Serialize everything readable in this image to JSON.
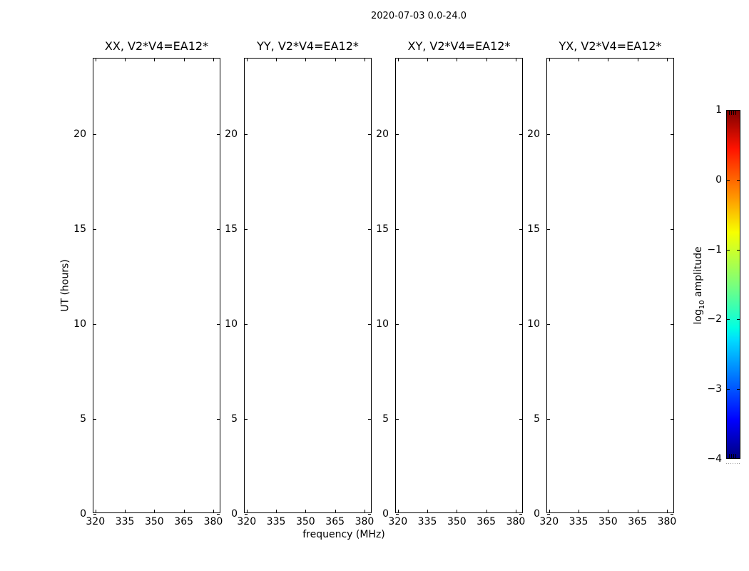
{
  "figure": {
    "title": "2020-07-03 0.0-24.0",
    "xlabel": "frequency (MHz)",
    "ylabel": "UT (hours)",
    "background_color": "#ffffff",
    "foreground_color": "#000000"
  },
  "subplots": [
    {
      "title": "XX, V2*V4=EA12*"
    },
    {
      "title": "YY, V2*V4=EA12*"
    },
    {
      "title": "XY, V2*V4=EA12*"
    },
    {
      "title": "YX, V2*V4=EA12*"
    }
  ],
  "axes": {
    "x_tick_labels": [
      "320",
      "335",
      "350",
      "365",
      "380"
    ],
    "y_tick_labels": [
      "0",
      "5",
      "10",
      "15",
      "20"
    ]
  },
  "colorbar": {
    "label_prefix": "log",
    "label_sub": "10",
    "label_suffix": " amplitude",
    "tick_labels": [
      "1",
      "0",
      "−1",
      "−2",
      "−3",
      "−4"
    ]
  },
  "chart_data": {
    "type": "heatmap",
    "title": "2020-07-03 0.0-24.0",
    "xlabel": "frequency (MHz)",
    "ylabel": "UT (hours)",
    "panels": [
      "XX, V2*V4=EA12*",
      "YY, V2*V4=EA12*",
      "XY, V2*V4=EA12*",
      "YX, V2*V4=EA12*"
    ],
    "xlim": [
      319,
      384
    ],
    "ylim": [
      0,
      24
    ],
    "x_ticks": [
      320,
      335,
      350,
      365,
      380
    ],
    "y_ticks": [
      0,
      5,
      10,
      15,
      20
    ],
    "grid": false,
    "values": [],
    "note": "all four panels are blank; no spectrogram data is rendered",
    "colorbar": {
      "label": "log10 amplitude",
      "min": -4,
      "max": 1,
      "ticks": [
        1,
        0,
        -1,
        -2,
        -3,
        -4
      ],
      "colormap": "jet",
      "gradient_stops": [
        {
          "color": "#000080",
          "pos": 0
        },
        {
          "color": "#0000ff",
          "pos": 11
        },
        {
          "color": "#00dbff",
          "pos": 34
        },
        {
          "color": "#00ffe3",
          "pos": 37.5
        },
        {
          "color": "#7bff7b",
          "pos": 50
        },
        {
          "color": "#f7ff00",
          "pos": 65
        },
        {
          "color": "#ff9700",
          "pos": 75
        },
        {
          "color": "#ff1300",
          "pos": 89
        },
        {
          "color": "#800000",
          "pos": 100
        }
      ]
    }
  }
}
